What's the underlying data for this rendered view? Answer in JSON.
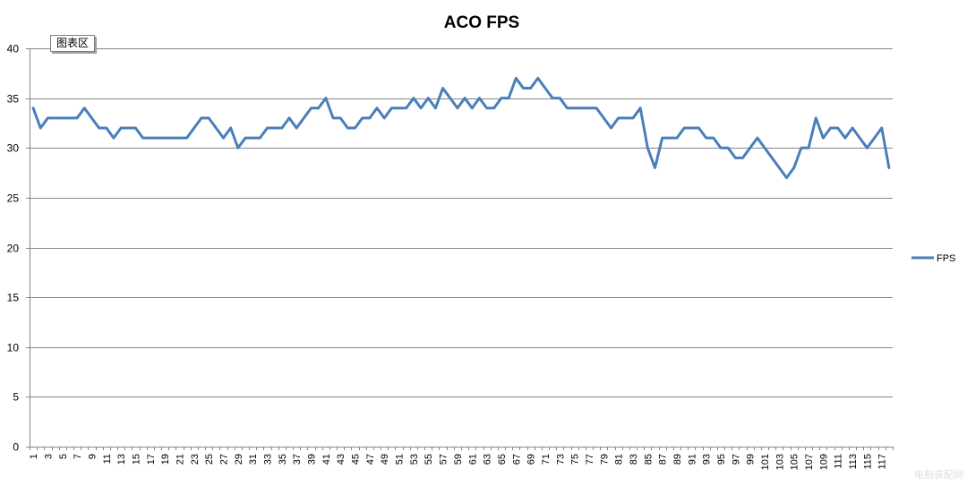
{
  "chart_data": {
    "type": "line",
    "title": "ACO FPS",
    "xlabel": "",
    "ylabel": "",
    "ylim": [
      0,
      40
    ],
    "yticks": [
      0,
      5,
      10,
      15,
      20,
      25,
      30,
      35,
      40
    ],
    "grid": true,
    "legend_position": "right",
    "x": [
      1,
      2,
      3,
      4,
      5,
      6,
      7,
      8,
      9,
      10,
      11,
      12,
      13,
      14,
      15,
      16,
      17,
      18,
      19,
      20,
      21,
      22,
      23,
      24,
      25,
      26,
      27,
      28,
      29,
      30,
      31,
      32,
      33,
      34,
      35,
      36,
      37,
      38,
      39,
      40,
      41,
      42,
      43,
      44,
      45,
      46,
      47,
      48,
      49,
      50,
      51,
      52,
      53,
      54,
      55,
      56,
      57,
      58,
      59,
      60,
      61,
      62,
      63,
      64,
      65,
      66,
      67,
      68,
      69,
      70,
      71,
      72,
      73,
      74,
      75,
      76,
      77,
      78,
      79,
      80,
      81,
      82,
      83,
      84,
      85,
      86,
      87,
      88,
      89,
      90,
      91,
      92,
      93,
      94,
      95,
      96,
      97,
      98,
      99,
      100,
      101,
      102,
      103,
      104,
      105,
      106,
      107,
      108,
      109,
      110,
      111,
      112,
      113,
      114,
      115,
      116,
      117,
      118
    ],
    "x_tick_labels": [
      "1",
      "3",
      "5",
      "7",
      "9",
      "11",
      "13",
      "15",
      "17",
      "19",
      "21",
      "23",
      "25",
      "27",
      "29",
      "31",
      "33",
      "35",
      "37",
      "39",
      "41",
      "43",
      "45",
      "47",
      "49",
      "51",
      "53",
      "55",
      "57",
      "59",
      "61",
      "63",
      "65",
      "67",
      "69",
      "71",
      "73",
      "75",
      "77",
      "79",
      "81",
      "83",
      "85",
      "87",
      "89",
      "91",
      "93",
      "95",
      "97",
      "99",
      "101",
      "103",
      "105",
      "107",
      "109",
      "111",
      "113",
      "115",
      "117"
    ],
    "series": [
      {
        "name": "FPS",
        "color": "#4a7ebb",
        "values": [
          34,
          32,
          33,
          33,
          33,
          33,
          33,
          34,
          33,
          32,
          32,
          31,
          32,
          32,
          32,
          31,
          31,
          31,
          31,
          31,
          31,
          31,
          32,
          33,
          33,
          32,
          31,
          32,
          30,
          31,
          31,
          31,
          32,
          32,
          32,
          33,
          32,
          33,
          34,
          34,
          35,
          33,
          33,
          32,
          32,
          33,
          33,
          34,
          33,
          34,
          34,
          34,
          35,
          34,
          35,
          34,
          36,
          35,
          34,
          35,
          34,
          35,
          34,
          34,
          35,
          35,
          37,
          36,
          36,
          37,
          36,
          35,
          35,
          34,
          34,
          34,
          34,
          34,
          33,
          32,
          33,
          33,
          33,
          34,
          30,
          28,
          31,
          31,
          31,
          32,
          32,
          32,
          31,
          31,
          30,
          30,
          29,
          29,
          30,
          31,
          30,
          29,
          28,
          27,
          28,
          30,
          30,
          33,
          31,
          32,
          32,
          31,
          32,
          31,
          30,
          31,
          32,
          28
        ]
      }
    ]
  },
  "chart_area_label": "图表区",
  "watermark": "电脑装配网"
}
